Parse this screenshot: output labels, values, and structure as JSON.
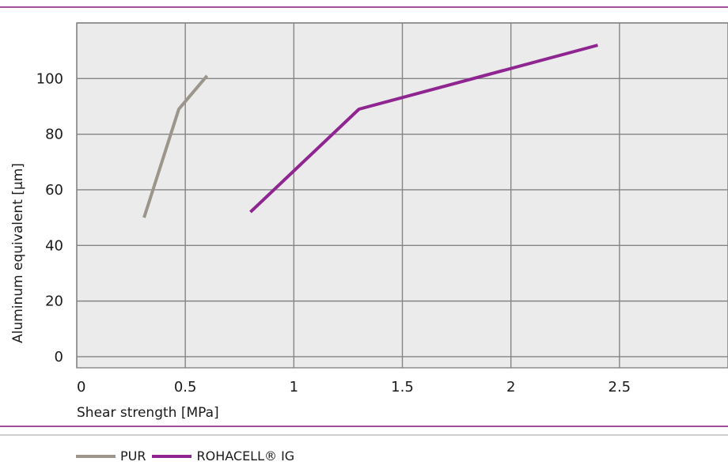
{
  "chart_data": {
    "type": "line",
    "title": "",
    "xlabel": "Shear strength [MPa]",
    "ylabel": "Aluminum equivalent [µm]",
    "xlim": [
      0,
      3
    ],
    "ylim": [
      -4,
      120
    ],
    "x_ticks": [
      0,
      0.5,
      1,
      1.5,
      2,
      2.5
    ],
    "x_tick_labels": [
      "0",
      "0.5",
      "1",
      "1.5",
      "2",
      "2.5"
    ],
    "y_ticks": [
      0,
      20,
      40,
      60,
      80,
      100
    ],
    "y_tick_labels": [
      "0",
      "20",
      "40",
      "60",
      "80",
      "100"
    ],
    "grid": true,
    "legend_position": "bottom-left",
    "series": [
      {
        "name": "PUR",
        "color": "#9c958c",
        "x": [
          0.31,
          0.47,
          0.6
        ],
        "y": [
          50,
          89,
          101
        ]
      },
      {
        "name": "ROHACELL® IG",
        "color": "#8e2590",
        "x": [
          0.8,
          1.3,
          2.4
        ],
        "y": [
          52,
          89,
          112
        ]
      }
    ],
    "colors": {
      "frame_line": "#a0509a",
      "separator": "#bdbdbd",
      "plot_bg": "#ebebeb",
      "grid": "#858585"
    }
  }
}
